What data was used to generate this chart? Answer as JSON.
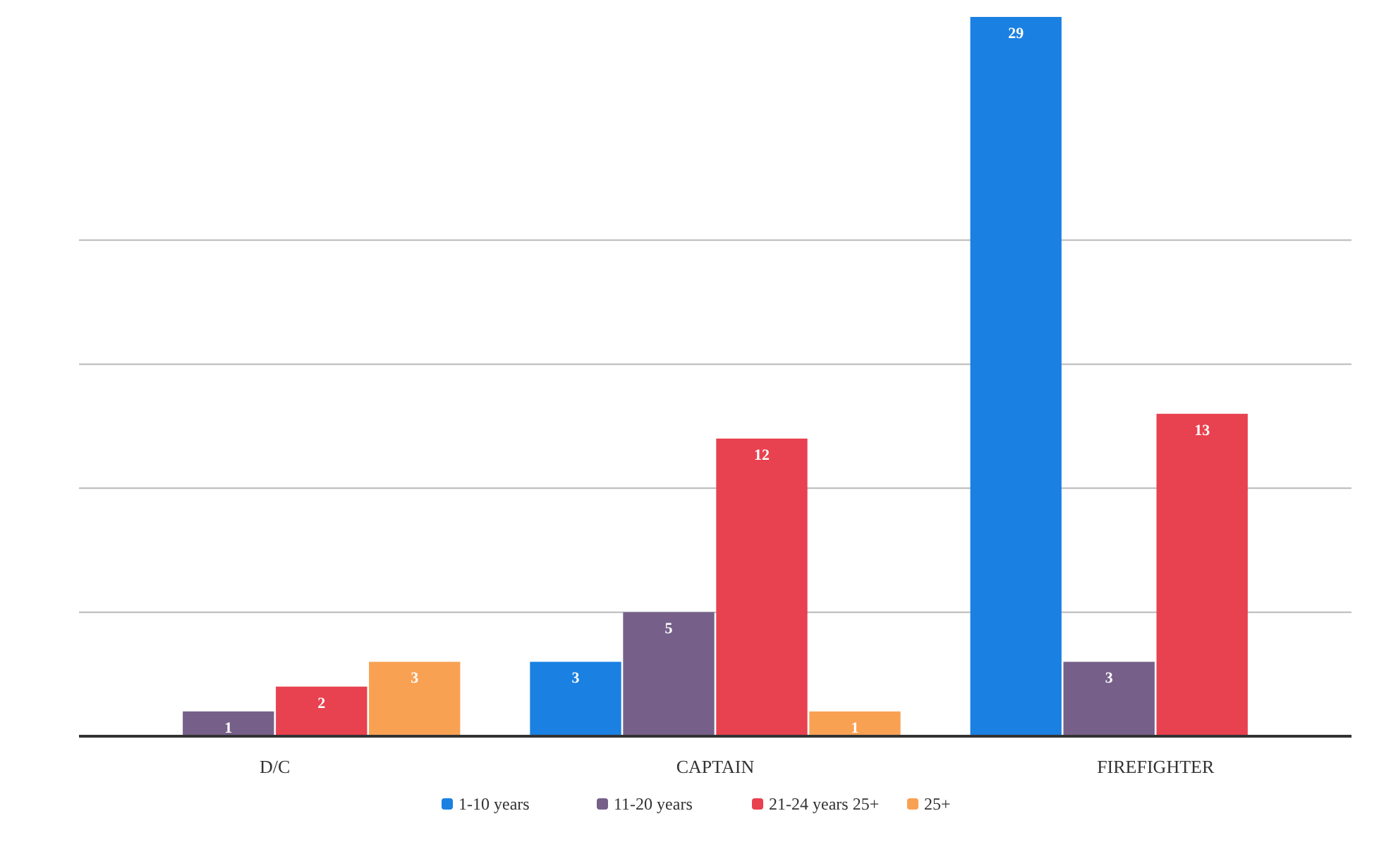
{
  "chart_data": {
    "type": "bar",
    "categories": [
      "D/C",
      "CAPTAIN",
      "FIREFIGHTER"
    ],
    "series": [
      {
        "name": "1-10 years",
        "color": "#1a80e2",
        "values": [
          null,
          3,
          29
        ]
      },
      {
        "name": "11-20 years",
        "color": "#76608a",
        "values": [
          1,
          5,
          3
        ]
      },
      {
        "name": "21-24 years 25+",
        "color": "#e8414f",
        "values": [
          2,
          12,
          13
        ]
      },
      {
        "name": "25+",
        "color": "#f9a153",
        "values": [
          3,
          1,
          null
        ]
      }
    ],
    "ylim": [
      0,
      29
    ],
    "yticks": [
      {
        "value": 0,
        "label": null
      },
      {
        "value": 5,
        "label": null
      },
      {
        "value": 10,
        "label": null
      },
      {
        "value": 15,
        "label": null
      },
      {
        "value": 20,
        "label": null
      }
    ],
    "tick_labels": "x",
    "grid": "y",
    "data_labels": true,
    "legend": "bottom"
  }
}
